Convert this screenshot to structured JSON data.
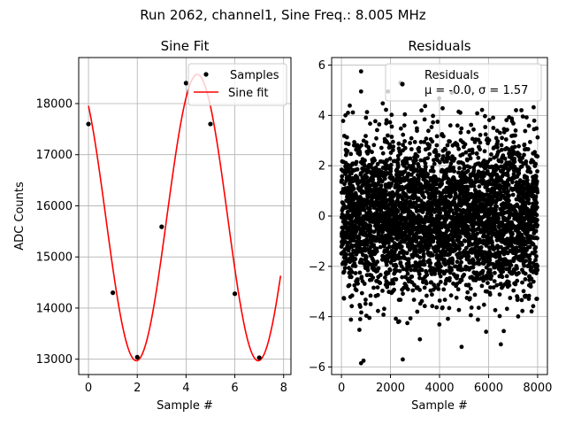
{
  "figure": {
    "suptitle": "Run 2062, channel1, Sine Freq.: 8.005 MHz"
  },
  "chart_data": [
    {
      "type": "line",
      "title": "Sine Fit",
      "xlabel": "Sample #",
      "ylabel": "ADC Counts",
      "xlim": [
        -0.4,
        8.3
      ],
      "ylim": [
        12700,
        18900
      ],
      "xticks": [
        0,
        2,
        4,
        6,
        8
      ],
      "yticks": [
        13000,
        14000,
        15000,
        16000,
        17000,
        18000
      ],
      "grid": true,
      "legend": {
        "position": "top-right",
        "entries": [
          {
            "label": "Samples",
            "type": "marker",
            "color": "#000000"
          },
          {
            "label": "Sine fit",
            "type": "line",
            "color": "#ff0000"
          }
        ]
      },
      "samples": {
        "x": [
          0,
          1,
          2,
          3,
          4,
          5,
          6,
          7
        ],
        "y": [
          17600,
          14300,
          13040,
          15590,
          18400,
          17600,
          14280,
          13030
        ]
      },
      "fit": {
        "x_range": [
          0,
          7.875
        ],
        "amplitude": 2800,
        "offset": 15770,
        "period_samples": 4.9969,
        "phase_deg": 128.7
      }
    },
    {
      "type": "scatter",
      "title": "Residuals",
      "xlabel": "Sample #",
      "ylabel": "",
      "xlim": [
        -400,
        8400
      ],
      "ylim": [
        -6.3,
        6.3
      ],
      "xticks": [
        0,
        2000,
        4000,
        6000,
        8000
      ],
      "yticks": [
        -6,
        -4,
        -2,
        0,
        2,
        4,
        6
      ],
      "grid": true,
      "n_points": 8000,
      "mu": -0.0,
      "sigma": 1.57,
      "legend": {
        "position": "top-right",
        "entries": [
          {
            "label": "Residuals",
            "label2": "μ = -0.0, σ = 1.57",
            "type": "marker",
            "color": "#000000"
          }
        ]
      },
      "outliers": [
        {
          "x": 800,
          "y": 5.75
        },
        {
          "x": 2400,
          "y": 5.3
        },
        {
          "x": 800,
          "y": 4.95
        },
        {
          "x": 1900,
          "y": 4.95
        },
        {
          "x": 4500,
          "y": 4.9
        },
        {
          "x": 800,
          "y": -5.85
        },
        {
          "x": 900,
          "y": -5.75
        },
        {
          "x": 2500,
          "y": -5.7
        },
        {
          "x": 4900,
          "y": -5.2
        },
        {
          "x": 5900,
          "y": -4.6
        },
        {
          "x": 6500,
          "y": -5.1
        },
        {
          "x": 3200,
          "y": -4.9
        }
      ]
    }
  ]
}
